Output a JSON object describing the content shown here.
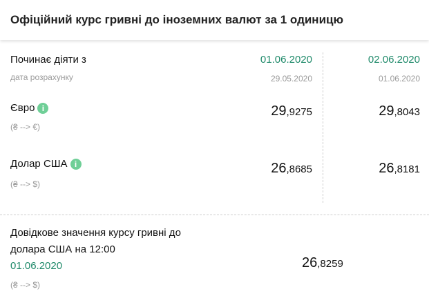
{
  "title": "Офіційний курс гривні до іноземних валют за 1 одиницю",
  "table": {
    "effective_label": "Починає діяти з",
    "calc_label": "дата розрахунку",
    "columns": [
      {
        "effective_date": "01.06.2020",
        "calc_date": "29.05.2020"
      },
      {
        "effective_date": "02.06.2020",
        "calc_date": "01.06.2020"
      }
    ],
    "rows": [
      {
        "name": "Євро",
        "direction": "(₴ --> €)",
        "values": [
          {
            "int": "29",
            "frac": ",9275"
          },
          {
            "int": "29",
            "frac": ",8043"
          }
        ]
      },
      {
        "name": "Долар США",
        "direction": "(₴ --> $)",
        "values": [
          {
            "int": "26",
            "frac": ",8685"
          },
          {
            "int": "26",
            "frac": ",8181"
          }
        ]
      }
    ]
  },
  "reference": {
    "line1": "Довідкове значення курсу гривні до",
    "line2": "долара США на 12:00",
    "date": "01.06.2020",
    "direction": "(₴ --> $)",
    "value_int": "26",
    "value_frac": ",8259"
  },
  "colors": {
    "accent": "#1f8a6a",
    "info_icon": "#6fcf97"
  },
  "info_icon_glyph": "i"
}
